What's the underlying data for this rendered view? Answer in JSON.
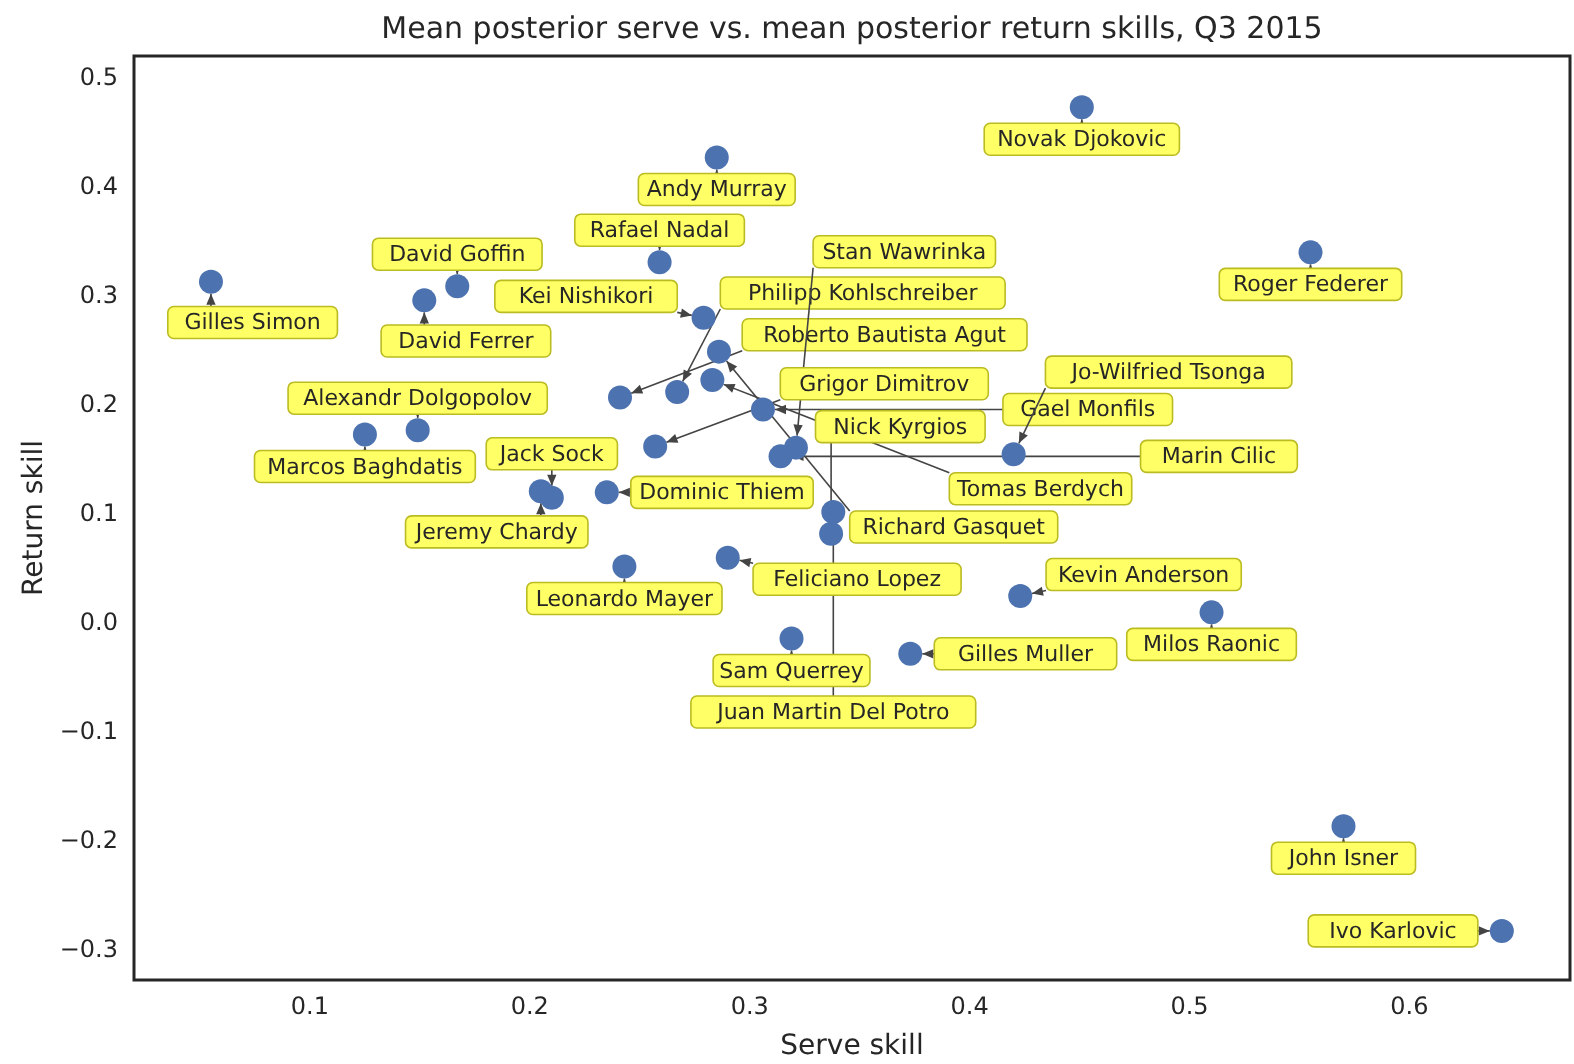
{
  "chart_data": {
    "type": "scatter",
    "title": "Mean posterior serve vs. mean posterior return skills, Q3 2015",
    "xlabel": "Serve skill",
    "ylabel": "Return skill",
    "xlim": [
      0.02,
      0.673
    ],
    "ylim": [
      -0.328,
      0.519
    ],
    "xticks": [
      0.1,
      0.2,
      0.3,
      0.4,
      0.5,
      0.6
    ],
    "yticks": [
      -0.3,
      -0.2,
      -0.1,
      {
        "value": 0,
        "label": "0.0"
      },
      0.1,
      0.2,
      0.3,
      0.4,
      0.5
    ],
    "grid": false,
    "marker": "circle",
    "series": [
      {
        "color": "#4c72b0",
        "x": [
          0.451,
          0.285,
          0.555,
          0.259,
          0.055,
          0.167,
          0.152,
          0.279,
          0.286,
          0.306,
          0.241,
          0.267,
          0.283,
          0.321,
          0.314,
          0.257,
          0.235,
          0.338,
          0.337,
          0.21,
          0.205,
          0.29,
          0.243,
          0.319,
          0.373,
          0.423,
          0.51,
          0.57,
          0.642,
          0.42,
          0.149,
          0.125
        ],
        "values": [
          0.472,
          0.426,
          0.339,
          0.33,
          0.312,
          0.308,
          0.295,
          0.279,
          0.248,
          0.195,
          0.206,
          0.211,
          0.222,
          0.16,
          0.152,
          0.161,
          0.119,
          0.101,
          0.081,
          0.114,
          0.12,
          0.059,
          0.051,
          -0.015,
          -0.029,
          0.024,
          0.009,
          -0.187,
          -0.283,
          0.154,
          0.176,
          0.172
        ]
      }
    ],
    "annotations": [
      {
        "text": "Novak Djokovic",
        "x": 0.451,
        "y": 0.472
      },
      {
        "text": "Andy Murray",
        "x": 0.285,
        "y": 0.426
      },
      {
        "text": "Roger Federer",
        "x": 0.555,
        "y": 0.339
      },
      {
        "text": "Rafael Nadal",
        "x": 0.259,
        "y": 0.33
      },
      {
        "text": "Gilles Simon",
        "x": 0.055,
        "y": 0.312
      },
      {
        "text": "David Goffin",
        "x": 0.167,
        "y": 0.308
      },
      {
        "text": "David Ferrer",
        "x": 0.152,
        "y": 0.295
      },
      {
        "text": "Kei Nishikori",
        "x": 0.279,
        "y": 0.279
      },
      {
        "text": "Richard Gasquet",
        "x": 0.286,
        "y": 0.248
      },
      {
        "text": "Gael Monfils",
        "x": 0.306,
        "y": 0.195
      },
      {
        "text": "Roberto Bautista Agut",
        "x": 0.241,
        "y": 0.206
      },
      {
        "text": "Philipp Kohlschreiber",
        "x": 0.267,
        "y": 0.211
      },
      {
        "text": "Tomas Berdych",
        "x": 0.283,
        "y": 0.222
      },
      {
        "text": "Stan Wawrinka",
        "x": 0.321,
        "y": 0.16
      },
      {
        "text": "Marin Cilic",
        "x": 0.314,
        "y": 0.152
      },
      {
        "text": "Grigor Dimitrov",
        "x": 0.257,
        "y": 0.161
      },
      {
        "text": "Dominic Thiem",
        "x": 0.235,
        "y": 0.119
      },
      {
        "text": "Juan Martin Del Potro",
        "x": 0.338,
        "y": 0.101
      },
      {
        "text": "Nick Kyrgios",
        "x": 0.337,
        "y": 0.081
      },
      {
        "text": "Jack Sock",
        "x": 0.21,
        "y": 0.114
      },
      {
        "text": "Jeremy Chardy",
        "x": 0.205,
        "y": 0.12
      },
      {
        "text": "Feliciano Lopez",
        "x": 0.29,
        "y": 0.059
      },
      {
        "text": "Leonardo Mayer",
        "x": 0.243,
        "y": 0.051
      },
      {
        "text": "Sam Querrey",
        "x": 0.319,
        "y": -0.015
      },
      {
        "text": "Gilles Muller",
        "x": 0.373,
        "y": -0.029
      },
      {
        "text": "Kevin Anderson",
        "x": 0.423,
        "y": 0.024
      },
      {
        "text": "Milos Raonic",
        "x": 0.51,
        "y": 0.009
      },
      {
        "text": "John Isner",
        "x": 0.57,
        "y": -0.187
      },
      {
        "text": "Ivo Karlovic",
        "x": 0.642,
        "y": -0.283
      },
      {
        "text": "Jo-Wilfried Tsonga",
        "x": 0.42,
        "y": 0.154
      },
      {
        "text": "Alexandr Dolgopolov",
        "x": 0.149,
        "y": 0.176
      },
      {
        "text": "Marcos Baghdatis",
        "x": 0.125,
        "y": 0.172
      }
    ]
  }
}
